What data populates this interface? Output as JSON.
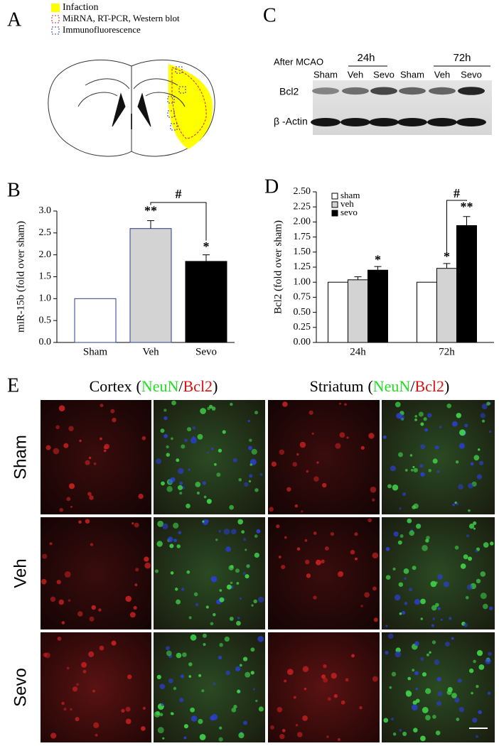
{
  "panels": {
    "a": {
      "label": "A",
      "legend": [
        "Infaction",
        "MiRNA, RT-PCR, Western blot",
        "Immunofluorescence"
      ]
    },
    "c": {
      "label": "C",
      "after": "After MCAO",
      "groups": [
        "24h",
        "72h"
      ],
      "lanes": [
        "Sham",
        "Veh",
        "Sevo",
        "Sham",
        "Veh",
        "Sevo"
      ],
      "rows": [
        "Bcl2",
        "β -Actin"
      ]
    },
    "e": {
      "label": "E",
      "columns": [
        {
          "region": "Cortex",
          "open": "(",
          "green": "NeuN",
          "slash": "/",
          "red": "Bcl2",
          "close": ")"
        },
        {
          "region": "Striatum",
          "open": "(",
          "green": "NeuN",
          "slash": "/",
          "red": "Bcl2",
          "close": ")"
        }
      ],
      "rows": [
        "Sham",
        "Veh",
        "Sevo"
      ]
    }
  },
  "chart_data": [
    {
      "type": "bar",
      "panel_label": "B",
      "y_label": "miR-15b (fold over sham)",
      "categories": [
        "Sham",
        "Veh",
        "Sevo"
      ],
      "values": [
        1.0,
        2.6,
        1.85
      ],
      "errors": [
        0,
        0.18,
        0.15
      ],
      "colors": [
        "#ffffff",
        "#d3d3d3",
        "#000000"
      ],
      "edge_colors": [
        "#2b3f8c",
        "#2b3f8c",
        "#000000"
      ],
      "ylim": [
        0,
        3.0
      ],
      "yticks": [
        {
          "value": 0,
          "label": "0.0"
        },
        0.5,
        {
          "value": 1,
          "label": "1.0"
        },
        1.5,
        {
          "value": 2,
          "label": "2.0"
        },
        2.5,
        {
          "value": 3,
          "label": "3.0"
        }
      ],
      "annotations": [
        "**",
        "*",
        "#"
      ]
    },
    {
      "type": "grouped_bar",
      "panel_label": "D",
      "y_label": "Bcl2 (fold over sham)",
      "categories": [
        "24h",
        "72h"
      ],
      "series": [
        {
          "name": "sham",
          "color": "#ffffff",
          "values": [
            1.0,
            1.0
          ],
          "errors": [
            0,
            0
          ]
        },
        {
          "name": "veh",
          "color": "#d3d3d3",
          "values": [
            1.04,
            1.23
          ],
          "errors": [
            0.05,
            0.08
          ]
        },
        {
          "name": "sevo",
          "color": "#000000",
          "values": [
            1.2,
            1.94
          ],
          "errors": [
            0.06,
            0.15
          ]
        }
      ],
      "legend": "top-left",
      "ylim": [
        0,
        2.5
      ],
      "yticks": [
        {
          "value": 0,
          "label": "0.00"
        },
        0.25,
        {
          "value": 0.5,
          "label": "0.50"
        },
        0.75,
        {
          "value": 1,
          "label": "1.00"
        },
        1.25,
        {
          "value": 1.5,
          "label": "1.50"
        },
        1.75,
        {
          "value": 2,
          "label": "2.00"
        },
        2.25,
        {
          "value": 2.5,
          "label": "2.50"
        }
      ],
      "annotations": [
        "*",
        "*",
        "**",
        "#"
      ]
    }
  ]
}
